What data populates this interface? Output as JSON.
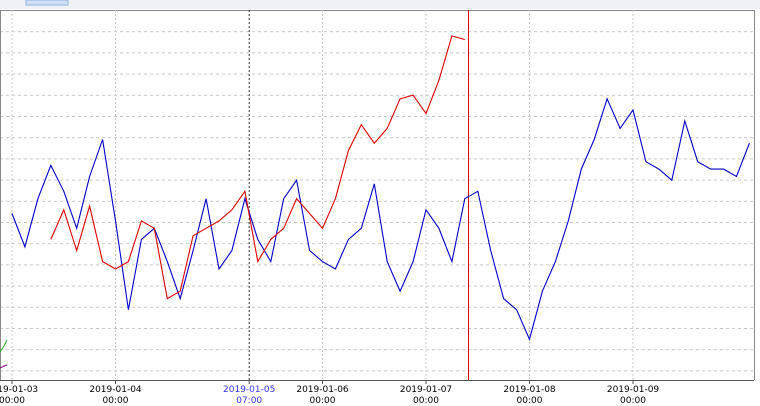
{
  "chart_data": {
    "type": "line",
    "x": [
      "2019-01-03 00:00",
      "2019-01-03 03:00",
      "2019-01-03 06:00",
      "2019-01-03 09:00",
      "2019-01-03 12:00",
      "2019-01-03 15:00",
      "2019-01-03 18:00",
      "2019-01-03 21:00",
      "2019-01-04 00:00",
      "2019-01-04 03:00",
      "2019-01-04 06:00",
      "2019-01-04 09:00",
      "2019-01-04 12:00",
      "2019-01-04 15:00",
      "2019-01-04 18:00",
      "2019-01-04 21:00",
      "2019-01-05 00:00",
      "2019-01-05 03:00",
      "2019-01-05 06:00",
      "2019-01-05 09:00",
      "2019-01-05 12:00",
      "2019-01-05 15:00",
      "2019-01-05 18:00",
      "2019-01-05 21:00",
      "2019-01-06 00:00",
      "2019-01-06 03:00",
      "2019-01-06 06:00",
      "2019-01-06 09:00",
      "2019-01-06 12:00",
      "2019-01-06 15:00",
      "2019-01-06 18:00",
      "2019-01-06 21:00",
      "2019-01-07 00:00",
      "2019-01-07 03:00",
      "2019-01-07 06:00",
      "2019-01-07 09:00",
      "2019-01-07 12:00",
      "2019-01-07 15:00",
      "2019-01-07 18:00",
      "2019-01-07 21:00",
      "2019-01-08 00:00",
      "2019-01-08 03:00",
      "2019-01-08 06:00",
      "2019-01-08 09:00",
      "2019-01-08 12:00",
      "2019-01-08 15:00",
      "2019-01-08 18:00",
      "2019-01-08 21:00",
      "2019-01-09 00:00",
      "2019-01-09 03:00",
      "2019-01-09 06:00",
      "2019-01-09 09:00",
      "2019-01-09 12:00",
      "2019-01-09 15:00",
      "2019-01-09 18:00",
      "2019-01-09 21:00",
      "2019-01-10 00:00",
      "2019-01-10 03:00"
    ],
    "series": [
      {
        "color": "#0000cc",
        "values": [
          45,
          36,
          49,
          58,
          51,
          41,
          55,
          65,
          43,
          19,
          38,
          41,
          32,
          22,
          35,
          49,
          30,
          35,
          49,
          38,
          32,
          49,
          54,
          35,
          32,
          30,
          38,
          41,
          53,
          32,
          24,
          32,
          46,
          41,
          32,
          49,
          51,
          35,
          22,
          19,
          11,
          24,
          32,
          43,
          57,
          65,
          76,
          68,
          73,
          59,
          57,
          54,
          70,
          59,
          57,
          57,
          55,
          64
        ]
      },
      {
        "color": "#e00000",
        "values": [
          null,
          null,
          null,
          38,
          46,
          35,
          47,
          32,
          30,
          32,
          43,
          41,
          22,
          24,
          39,
          41,
          43,
          46,
          51,
          32,
          38,
          41,
          49,
          45,
          41,
          49,
          62,
          69,
          64,
          68,
          76,
          77,
          72,
          81,
          93,
          92,
          null,
          null,
          null,
          null,
          null,
          null,
          null,
          null,
          null,
          null,
          null,
          null,
          null,
          null,
          null,
          null,
          null,
          null,
          null,
          null,
          null,
          null
        ]
      }
    ],
    "xticks": [
      {
        "value": "2019-01-03 00:00",
        "label": [
          "2019-01-03",
          "00:00"
        ]
      },
      {
        "value": "2019-01-04 00:00",
        "label": [
          "2019-01-04",
          "00:00"
        ]
      },
      {
        "value": "2019-01-06 00:00",
        "label": [
          "2019-01-06",
          "00:00"
        ]
      },
      {
        "value": "2019-01-07 00:00",
        "label": [
          "2019-01-07",
          "00:00"
        ]
      },
      {
        "value": "2019-01-08 00:00",
        "label": [
          "2019-01-08",
          "00:00"
        ]
      },
      {
        "value": "2019-01-09 00:00",
        "label": [
          "2019-01-09",
          "00:00"
        ]
      }
    ],
    "cursor": {
      "value": "2019-01-05 07:00",
      "label": [
        "2019-01-05",
        "07:00"
      ],
      "color": "#3333ff"
    },
    "ylim": [
      0,
      100
    ],
    "grid": true
  }
}
